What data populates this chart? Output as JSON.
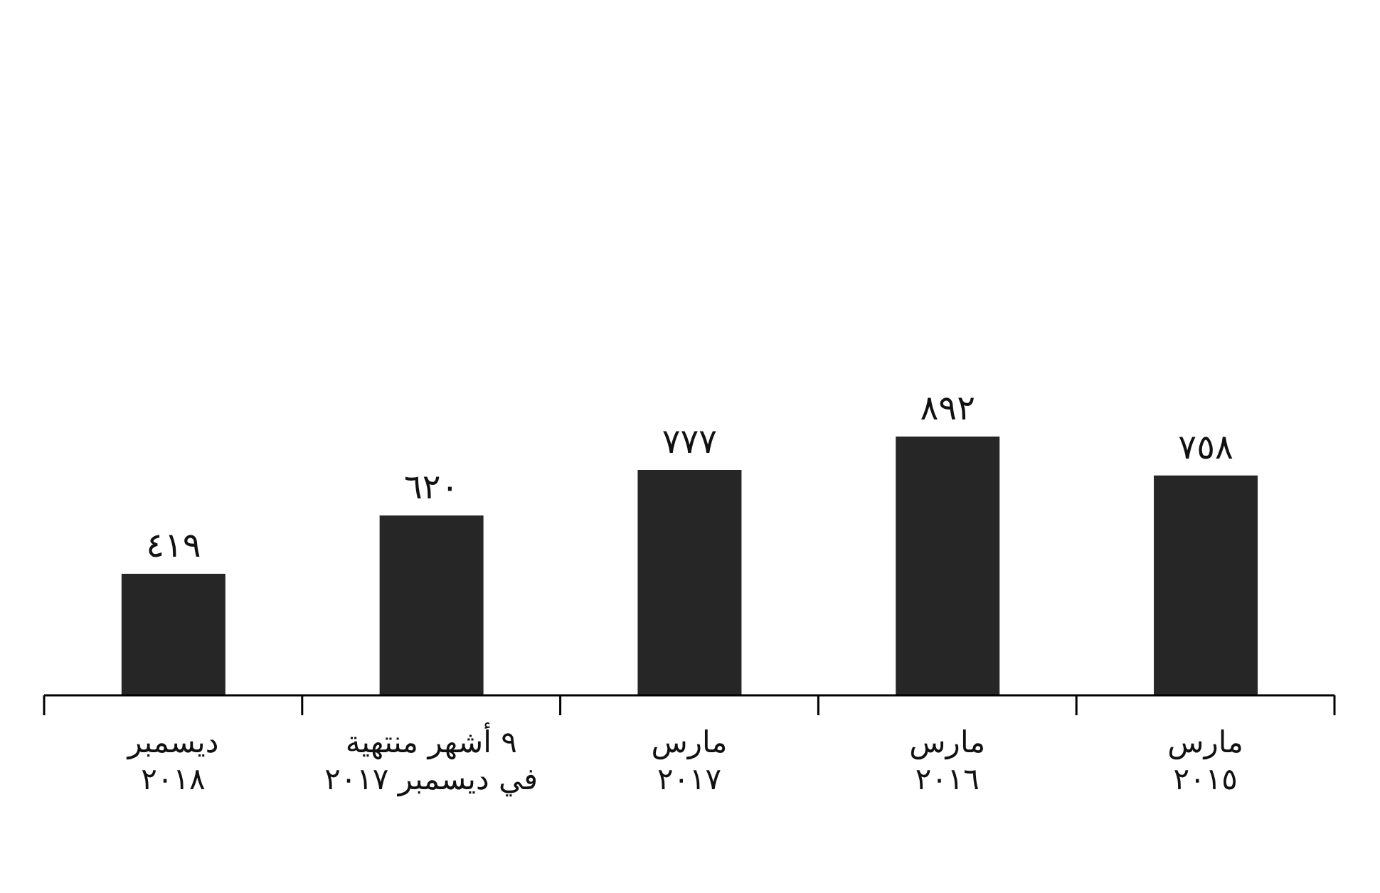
{
  "chart_data": {
    "type": "bar",
    "categories": [
      "ديسمبر\n٢٠١٨",
      "٩ أشهر منتهية\nفي ديسمبر ٢٠١٧",
      "مارس\n٢٠١٧",
      "مارس\n٢٠١٦",
      "مارس\n٢٠١٥"
    ],
    "values": [
      419,
      620,
      777,
      892,
      758
    ],
    "value_labels": [
      "٤١٩",
      "٦٢٠",
      "٧٧٧",
      "٨٩٢",
      "٧٥٨"
    ],
    "color": "#262626",
    "grid": false
  }
}
